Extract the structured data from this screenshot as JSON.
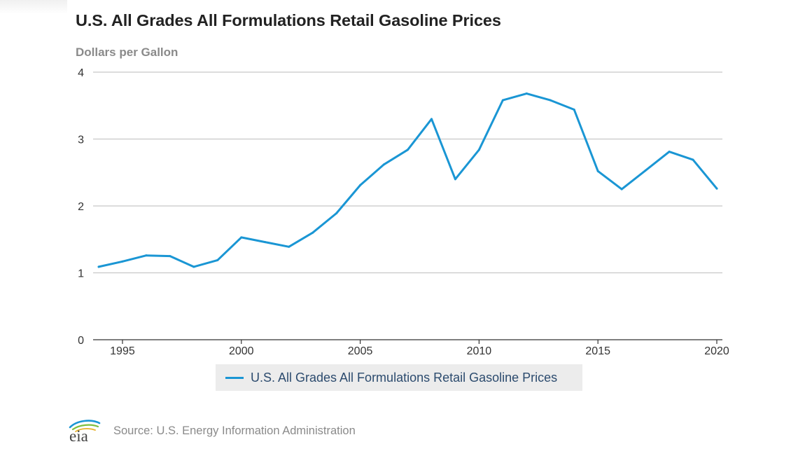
{
  "header": {
    "title": "U.S. All Grades All Formulations Retail Gasoline Prices",
    "y_unit": "Dollars per Gallon"
  },
  "chart_data": {
    "type": "line",
    "title": "U.S. All Grades All Formulations Retail Gasoline Prices",
    "ylabel": "Dollars per Gallon",
    "xlabel": "",
    "xlim": [
      1994,
      2020
    ],
    "ylim": [
      0,
      4
    ],
    "grid": true,
    "x_ticks": [
      1995,
      2000,
      2005,
      2010,
      2015,
      2020
    ],
    "y_ticks": [
      0,
      1,
      2,
      3,
      4
    ],
    "legend_position": "bottom-center",
    "x": [
      1994,
      1995,
      1996,
      1997,
      1998,
      1999,
      2000,
      2001,
      2002,
      2003,
      2004,
      2005,
      2006,
      2007,
      2008,
      2009,
      2010,
      2011,
      2012,
      2013,
      2014,
      2015,
      2016,
      2017,
      2018,
      2019,
      2020
    ],
    "series": [
      {
        "name": "U.S. All Grades All Formulations Retail Gasoline Prices",
        "color": "#1a96d4",
        "values": [
          1.09,
          1.17,
          1.26,
          1.25,
          1.09,
          1.19,
          1.53,
          1.46,
          1.39,
          1.6,
          1.89,
          2.31,
          2.62,
          2.84,
          3.3,
          2.4,
          2.84,
          3.58,
          3.68,
          3.58,
          3.44,
          2.52,
          2.25,
          2.53,
          2.81,
          2.69,
          2.26
        ]
      }
    ]
  },
  "legend": {
    "label": "U.S. All Grades All Formulations Retail Gasoline Prices",
    "color": "#1a96d4"
  },
  "footer": {
    "logo_text": "eia",
    "source": "Source: U.S. Energy Information Administration"
  }
}
